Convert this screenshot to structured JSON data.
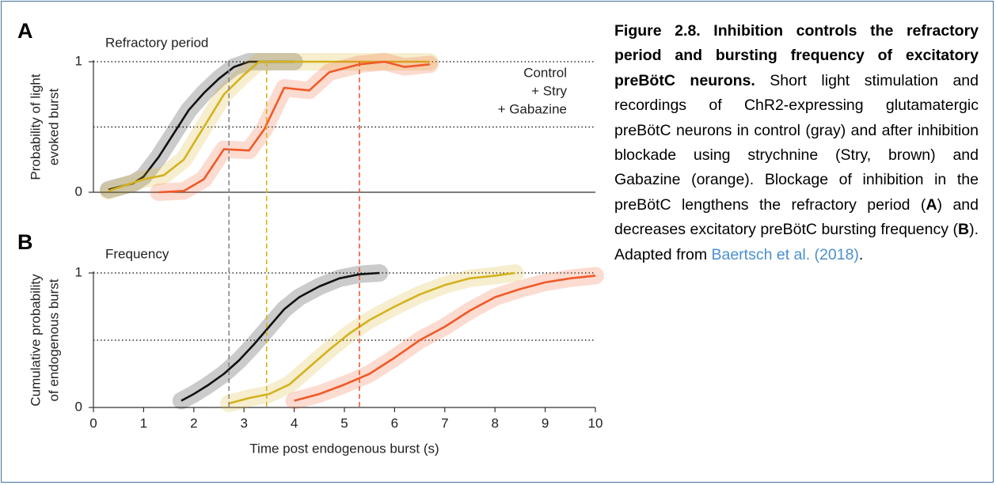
{
  "chart_data": [
    {
      "type": "line",
      "panel": "A",
      "title": "Refractory period",
      "ylabel": [
        "Probability of light",
        "evoked burst"
      ],
      "xlim": [
        0,
        10
      ],
      "ylim": [
        0,
        1
      ],
      "yticks": [
        0,
        1
      ],
      "reflines": [
        0.5,
        1
      ],
      "legend": "upper right",
      "series": [
        {
          "name": "Control",
          "color": "#111111",
          "legend_color": "#8a8a8a",
          "x": [
            0.3,
            0.8,
            1.0,
            1.3,
            1.6,
            1.9,
            2.2,
            2.5,
            2.8,
            3.1,
            3.4,
            4.0
          ],
          "values": [
            0.02,
            0.07,
            0.12,
            0.27,
            0.45,
            0.63,
            0.76,
            0.87,
            0.96,
            1,
            1,
            1
          ]
        },
        {
          "name": "+ Stry",
          "color": "#d4b21e",
          "legend_color": "#c9a614",
          "x": [
            0.3,
            1.0,
            1.4,
            1.8,
            2.2,
            2.6,
            3.0,
            3.3,
            6.7
          ],
          "values": [
            0.01,
            0.1,
            0.13,
            0.25,
            0.5,
            0.75,
            0.9,
            1,
            1
          ]
        },
        {
          "name": "+ Gabazine",
          "color": "#f05a28",
          "legend_color": "#f05a28",
          "x": [
            1.3,
            1.8,
            2.2,
            2.6,
            3.1,
            3.4,
            3.8,
            4.3,
            4.7,
            5.3,
            5.8,
            6.2,
            6.7
          ],
          "values": [
            0,
            0.01,
            0.1,
            0.33,
            0.32,
            0.48,
            0.8,
            0.78,
            0.92,
            0.98,
            1,
            0.96,
            0.98
          ]
        }
      ],
      "vlines": [
        {
          "value": 2.7,
          "color": "#888888"
        },
        {
          "value": 3.45,
          "color": "#d4b21e"
        },
        {
          "value": 5.3,
          "color": "#f05a28"
        }
      ]
    },
    {
      "type": "line",
      "panel": "B",
      "title": "Frequency",
      "ylabel": [
        "Cumulative probability",
        "of endogenous burst"
      ],
      "xlabel": "Time post endogenous burst (s)",
      "xlim": [
        0,
        10
      ],
      "xticks": [
        0,
        1,
        2,
        3,
        4,
        5,
        6,
        7,
        8,
        9,
        10
      ],
      "ylim": [
        0,
        1
      ],
      "yticks": [
        0,
        1
      ],
      "reflines": [
        0.5,
        1
      ],
      "series": [
        {
          "color": "#111111",
          "x": [
            1.75,
            2.0,
            2.3,
            2.6,
            2.9,
            3.2,
            3.5,
            3.8,
            4.1,
            4.5,
            4.9,
            5.3,
            5.7
          ],
          "values": [
            0.05,
            0.1,
            0.17,
            0.25,
            0.35,
            0.47,
            0.6,
            0.73,
            0.82,
            0.9,
            0.96,
            0.99,
            1
          ]
        },
        {
          "color": "#d4b21e",
          "x": [
            2.7,
            3.1,
            3.5,
            3.9,
            4.3,
            4.7,
            5.1,
            5.5,
            6.0,
            6.5,
            7.0,
            7.5,
            8.0,
            8.4
          ],
          "values": [
            0.03,
            0.07,
            0.1,
            0.17,
            0.3,
            0.43,
            0.55,
            0.65,
            0.75,
            0.84,
            0.91,
            0.96,
            0.98,
            1
          ]
        },
        {
          "color": "#f05a28",
          "x": [
            4.0,
            4.5,
            5.0,
            5.5,
            6.0,
            6.5,
            7.0,
            7.5,
            8.0,
            8.5,
            9.0,
            9.5,
            10.0
          ],
          "values": [
            0.05,
            0.1,
            0.17,
            0.25,
            0.37,
            0.5,
            0.6,
            0.72,
            0.82,
            0.88,
            0.93,
            0.96,
            0.98
          ]
        }
      ]
    }
  ],
  "caption": [
    {
      "text": "Figure 2.8. Inhibition controls the refractory period and bursting frequency of excitatory preBötC neurons.",
      "style": "bold"
    },
    {
      "text": " Short light stimulation and recordings of ChR2-expressing glutamatergic preBötC neurons in control (gray) and after inhibition blockade using strychnine (Stry, brown) and Gabazine (orange). Blockage of inhibition in the preBötC lengthens the refractory period (",
      "style": "normal"
    },
    {
      "text": "A",
      "style": "bold"
    },
    {
      "text": ") and decreases excitatory preBötC bursting frequency (",
      "style": "normal"
    },
    {
      "text": "B",
      "style": "bold"
    },
    {
      "text": "). Adapted from ",
      "style": "normal"
    },
    {
      "text": "Baertsch et al. (2018)",
      "style": "link"
    },
    {
      "text": ".",
      "style": "normal"
    }
  ]
}
